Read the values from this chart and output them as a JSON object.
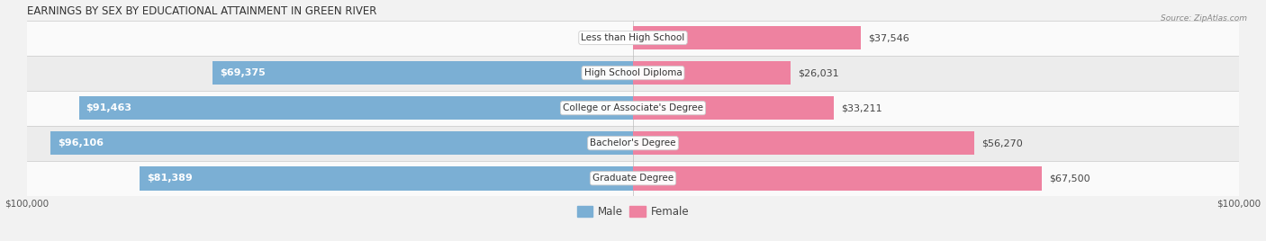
{
  "title": "EARNINGS BY SEX BY EDUCATIONAL ATTAINMENT IN GREEN RIVER",
  "source": "Source: ZipAtlas.com",
  "categories": [
    "Less than High School",
    "High School Diploma",
    "College or Associate's Degree",
    "Bachelor's Degree",
    "Graduate Degree"
  ],
  "male_values": [
    0,
    69375,
    91463,
    96106,
    81389
  ],
  "female_values": [
    37546,
    26031,
    33211,
    56270,
    67500
  ],
  "male_color": "#7bafd4",
  "female_color": "#ee82a0",
  "max_value": 100000,
  "bar_height": 0.68,
  "background_color": "#f2f2f2",
  "row_bg_colors": [
    "#fafafa",
    "#ececec"
  ],
  "label_fontsize": 8.0,
  "title_fontsize": 8.5,
  "tick_label_fontsize": 7.5,
  "legend_fontsize": 8.5
}
